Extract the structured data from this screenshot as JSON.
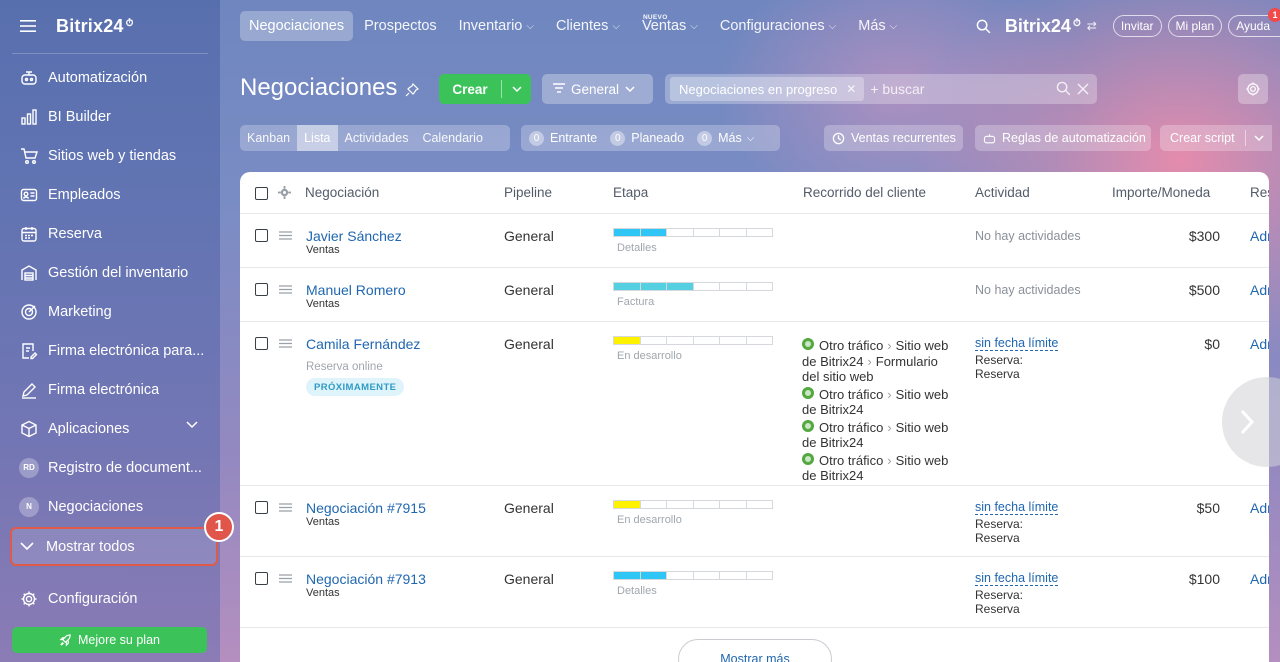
{
  "brand": {
    "name": "Bitrix24",
    "clock": "⏱"
  },
  "sidebar": {
    "items": [
      {
        "label": "Automatización",
        "icon": "robot-icon"
      },
      {
        "label": "BI Builder",
        "icon": "bar-chart-icon"
      },
      {
        "label": "Sitios web y tiendas",
        "icon": "cart-icon"
      },
      {
        "label": "Empleados",
        "icon": "id-card-icon"
      },
      {
        "label": "Reserva",
        "icon": "calendar-icon"
      },
      {
        "label": "Gestión del inventario",
        "icon": "warehouse-icon"
      },
      {
        "label": "Marketing",
        "icon": "target-icon"
      },
      {
        "label": "Firma electrónica para...",
        "icon": "doc-sign-icon"
      },
      {
        "label": "Firma electrónica",
        "icon": "pen-icon"
      },
      {
        "label": "Aplicaciones",
        "icon": "cube-icon"
      },
      {
        "label": "Registro de document...",
        "icon": "avatar-rd"
      },
      {
        "label": "Negociaciones",
        "icon": "avatar-n"
      }
    ],
    "avatar_rd": "RD",
    "avatar_n": "N",
    "show_all": "Mostrar todos",
    "step_badge": "1",
    "config": "Configuración",
    "upgrade": "Mejore su plan"
  },
  "topbar": {
    "tabs": [
      {
        "label": "Negociaciones",
        "active": true
      },
      {
        "label": "Prospectos"
      },
      {
        "label": "Inventario",
        "dropdown": true
      },
      {
        "label": "Clientes",
        "dropdown": true
      },
      {
        "label": "Ventas",
        "dropdown": true,
        "badge": "NUEVO"
      },
      {
        "label": "Configuraciones",
        "dropdown": true
      },
      {
        "label": "Más",
        "dropdown": true
      }
    ],
    "brand": "Bitrix24",
    "invite": "Invitar",
    "plan": "Mi plan",
    "help": "Ayuda",
    "help_notif": "1"
  },
  "page": {
    "title": "Negociaciones",
    "create": "Crear",
    "general": "General",
    "filter_chip": "Negociaciones en progreso",
    "search_placeholder": "+ buscar"
  },
  "views": {
    "tabs": [
      "Kanban",
      "Lista",
      "Actividades",
      "Calendario"
    ],
    "active": "Lista",
    "counters": [
      {
        "num": "0",
        "label": "Entrante"
      },
      {
        "num": "0",
        "label": "Planeado"
      },
      {
        "num": "0",
        "label": "Más"
      }
    ],
    "recurrent": "Ventas recurrentes",
    "rules": "Reglas de automatización",
    "script": "Crear script"
  },
  "grid": {
    "headers": [
      "Negociación",
      "Pipeline",
      "Etapa",
      "Recorrido del cliente",
      "Actividad",
      "Importe/Moneda",
      "Res"
    ],
    "rows": [
      {
        "name": "Javier Sánchez",
        "category": "Ventas",
        "pipeline": "General",
        "stage": "Detalles",
        "stage_color": "#2fc6f6",
        "stage_progress": 0.33,
        "activity": "No hay actividades",
        "amount": "$300",
        "resp": "Adr"
      },
      {
        "name": "Manuel Romero",
        "category": "Ventas",
        "pipeline": "General",
        "stage": "Factura",
        "stage_color": "#55d0e0",
        "stage_progress": 0.5,
        "activity": "No hay actividades",
        "amount": "$500",
        "resp": "Adr"
      },
      {
        "name": "Camila Fernández",
        "sub": "Reserva online",
        "badge": "PRÓXIMAMENTE",
        "pipeline": "General",
        "stage": "En desarrollo",
        "stage_color": "#fff200",
        "stage_progress": 0.17,
        "journey": [
          [
            "Otro tráfico",
            "Sitio web de Bitrix24",
            "Formulario del sitio web"
          ],
          [
            "Otro tráfico",
            "Sitio web de Bitrix24"
          ],
          [
            "Otro tráfico",
            "Sitio web de Bitrix24"
          ],
          [
            "Otro tráfico",
            "Sitio web de Bitrix24"
          ]
        ],
        "activity_link": "sin fecha límite",
        "activity_l1": "Reserva:",
        "activity_l2": "Reserva",
        "amount": "$0",
        "resp": "Adr"
      },
      {
        "name": "Negociación #7915",
        "category": "Ventas",
        "pipeline": "General",
        "stage": "En desarrollo",
        "stage_color": "#fff200",
        "stage_progress": 0.17,
        "activity_link": "sin fecha límite",
        "activity_l1": "Reserva:",
        "activity_l2": "Reserva",
        "amount": "$50",
        "resp": "Adr"
      },
      {
        "name": "Negociación #7913",
        "category": "Ventas",
        "pipeline": "General",
        "stage": "Detalles",
        "stage_color": "#2fc6f6",
        "stage_progress": 0.33,
        "activity_link": "sin fecha límite",
        "activity_l1": "Reserva:",
        "activity_l2": "Reserva",
        "amount": "$100",
        "resp": "Adr"
      }
    ],
    "show_more": "Mostrar más"
  }
}
